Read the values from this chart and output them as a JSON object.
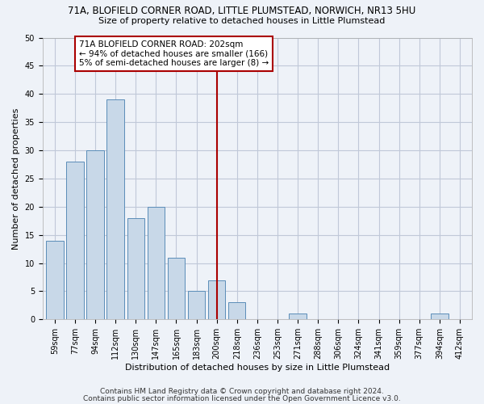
{
  "title_line1": "71A, BLOFIELD CORNER ROAD, LITTLE PLUMSTEAD, NORWICH, NR13 5HU",
  "title_line2": "Size of property relative to detached houses in Little Plumstead",
  "xlabel": "Distribution of detached houses by size in Little Plumstead",
  "ylabel": "Number of detached properties",
  "categories": [
    "59sqm",
    "77sqm",
    "94sqm",
    "112sqm",
    "130sqm",
    "147sqm",
    "165sqm",
    "183sqm",
    "200sqm",
    "218sqm",
    "236sqm",
    "253sqm",
    "271sqm",
    "288sqm",
    "306sqm",
    "324sqm",
    "341sqm",
    "359sqm",
    "377sqm",
    "394sqm",
    "412sqm"
  ],
  "values": [
    14,
    28,
    30,
    39,
    18,
    20,
    11,
    5,
    7,
    3,
    0,
    0,
    1,
    0,
    0,
    0,
    0,
    0,
    0,
    1,
    0
  ],
  "bar_color": "#c8d8e8",
  "bar_edge_color": "#5b8db8",
  "grid_color": "#c0c8d8",
  "background_color": "#eef2f8",
  "vline_x_index": 8,
  "vline_color": "#aa0000",
  "annotation_text": "71A BLOFIELD CORNER ROAD: 202sqm\n← 94% of detached houses are smaller (166)\n5% of semi-detached houses are larger (8) →",
  "annotation_box_color": "#ffffff",
  "annotation_box_edge_color": "#aa0000",
  "ylim": [
    0,
    50
  ],
  "yticks": [
    0,
    5,
    10,
    15,
    20,
    25,
    30,
    35,
    40,
    45,
    50
  ],
  "footer_line1": "Contains HM Land Registry data © Crown copyright and database right 2024.",
  "footer_line2": "Contains public sector information licensed under the Open Government Licence v3.0.",
  "title_fontsize": 8.5,
  "subtitle_fontsize": 8,
  "axis_label_fontsize": 8,
  "tick_fontsize": 7,
  "annotation_fontsize": 7.5,
  "footer_fontsize": 6.5
}
